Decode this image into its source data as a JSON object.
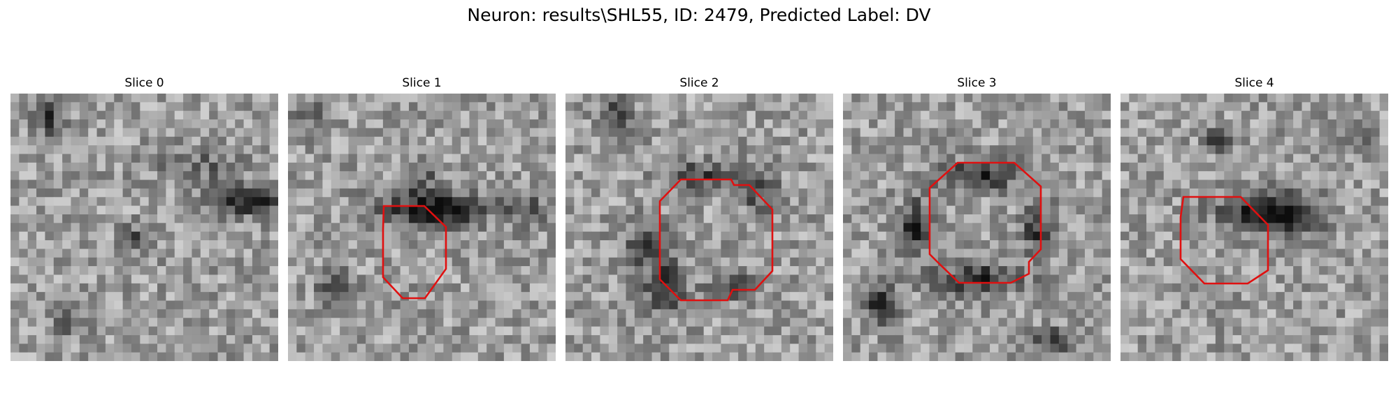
{
  "figure": {
    "title": "Neuron: results\\SHL55, ID: 2479, Predicted Label: DV",
    "roi_color": "#e01010",
    "slices": [
      {
        "title": "Slice 0",
        "has_roi": false
      },
      {
        "title": "Slice 1",
        "has_roi": true
      },
      {
        "title": "Slice 2",
        "has_roi": true
      },
      {
        "title": "Slice 3",
        "has_roi": true
      },
      {
        "title": "Slice 4",
        "has_roi": true
      }
    ]
  }
}
